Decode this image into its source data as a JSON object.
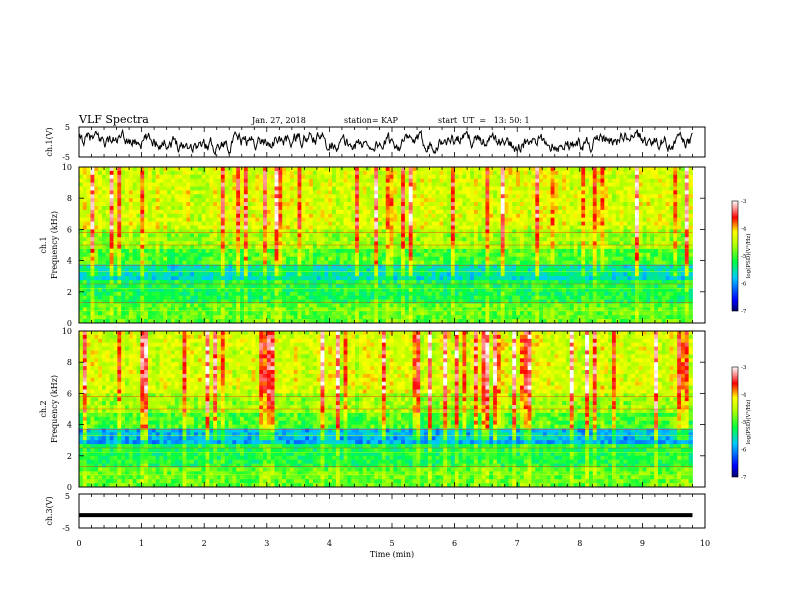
{
  "header": {
    "title": "VLF Spectra",
    "date": "Jan. 27, 2018",
    "station": "station= KAP",
    "start_time": "start  UT  =   13: 50: 1"
  },
  "chart_data": [
    {
      "type": "line",
      "panel": "ch1-waveform",
      "ylabel": "ch.1(V)",
      "ylim": [
        -5,
        5
      ],
      "yticks": [
        "5",
        "-5"
      ],
      "xlim": [
        0,
        10
      ],
      "description": "waveform, values fluctuating roughly between -4 and 4 V over 0 to 9.8 min"
    },
    {
      "type": "heatmap",
      "panel": "ch1-spectrogram",
      "ylabel_line1": "ch.1",
      "ylabel_line2": "Frequency  (kHz)",
      "ylim": [
        0,
        10
      ],
      "yticks": [
        "0",
        "2",
        "4",
        "6",
        "8",
        "10"
      ],
      "xlim": [
        0,
        10
      ],
      "data_end_min": 9.8,
      "colorbar": {
        "label": "log(PSD)(V²/Hz)",
        "range": [
          -7,
          -3
        ],
        "ticks": [
          "-3",
          "-4",
          "-5",
          "-6",
          "-7"
        ]
      }
    },
    {
      "type": "heatmap",
      "panel": "ch2-spectrogram",
      "ylabel_line1": "ch.2",
      "ylabel_line2": "Frequency  (kHz)",
      "ylim": [
        0,
        10
      ],
      "yticks": [
        "0",
        "2",
        "4",
        "6",
        "8",
        "10"
      ],
      "xlim": [
        0,
        10
      ],
      "data_end_min": 9.8,
      "colorbar": {
        "label": "log(PSD)(V²/Hz)",
        "range": [
          -7,
          -3
        ],
        "ticks": [
          "-3",
          "-4",
          "-5",
          "-6",
          "-7"
        ]
      }
    },
    {
      "type": "line",
      "panel": "ch3-waveform",
      "ylabel": "ch.3(V)",
      "ylim": [
        -5,
        5
      ],
      "yticks": [
        "5",
        "-5"
      ],
      "xlim": [
        0,
        10
      ],
      "constant_value": -1.2
    }
  ],
  "xaxis": {
    "label": "Time  (min)",
    "ticks": [
      "0",
      "1",
      "2",
      "3",
      "4",
      "5",
      "6",
      "7",
      "8",
      "9",
      "10"
    ]
  },
  "colors": {
    "line": "#000000",
    "colormap": [
      "#000088",
      "#0000ff",
      "#00ffff",
      "#00ff00",
      "#ffff00",
      "#ff0000",
      "#ffffff"
    ]
  }
}
